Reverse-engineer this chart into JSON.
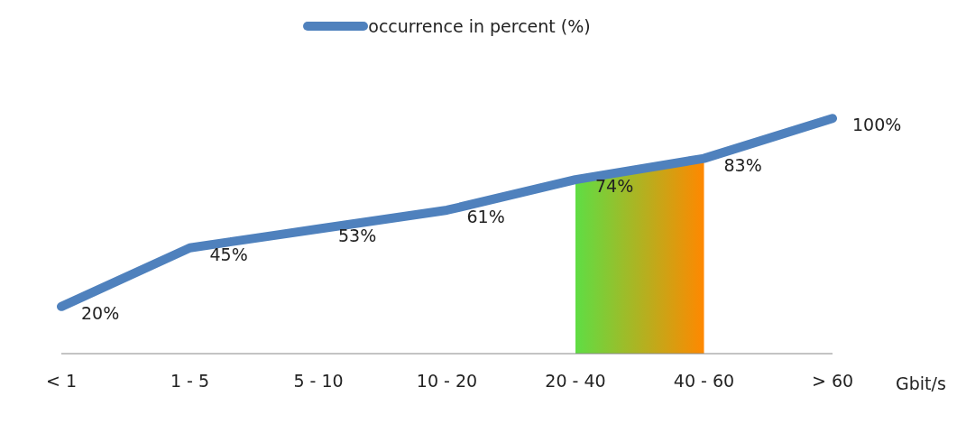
{
  "chart_data": {
    "type": "line",
    "categories": [
      "< 1",
      "1 - 5",
      "5 - 10",
      "10 - 20",
      "20 - 40",
      "40 - 60",
      "> 60"
    ],
    "xlabel": "Gbit/s",
    "series": [
      {
        "type": "area",
        "colors": [
          null,
          null,
          null,
          null,
          "#5fdd44",
          "#ff8800",
          null
        ],
        "values": [
          null,
          null,
          null,
          null,
          74,
          83,
          null
        ]
      },
      {
        "name": "occurrence in percent (%)",
        "color": "#4f81bd",
        "values": [
          20,
          45,
          53,
          61,
          74,
          83,
          100
        ],
        "value_labels": [
          "20%",
          "45%",
          "53%",
          "61%",
          "74%",
          "83%",
          "100%"
        ]
      }
    ],
    "legend": "top",
    "grid": false,
    "marker": "none",
    "line_style": "solid"
  }
}
